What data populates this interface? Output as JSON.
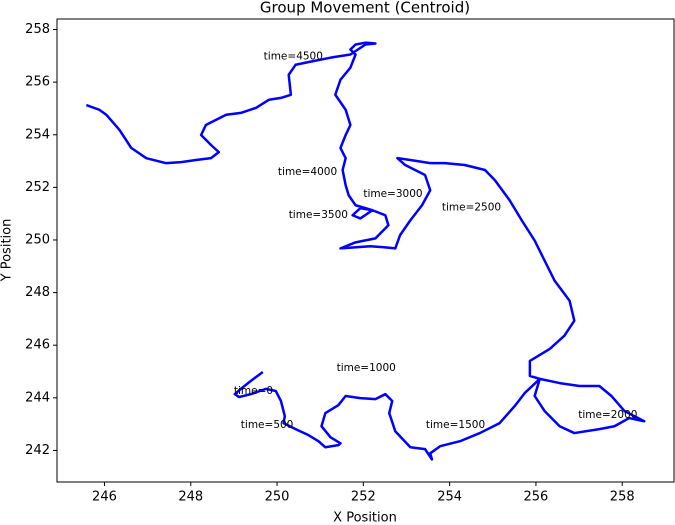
{
  "chart_data": {
    "type": "line",
    "title": "Group Movement (Centroid)",
    "x_label": "X Position",
    "y_label": "Y Position",
    "color": "#0000ff",
    "annotation_color": "#ff0000",
    "x": [
      249.67,
      249.39,
      249.16,
      249.02,
      249.12,
      249.39,
      249.74,
      249.97,
      250.09,
      250.18,
      250.15,
      250.43,
      250.73,
      250.96,
      251.12,
      251.42,
      251.47,
      251.24,
      251.03,
      251.12,
      251.42,
      251.59,
      251.93,
      252.28,
      252.51,
      252.67,
      252.6,
      252.74,
      253.09,
      253.43,
      253.59,
      253.55,
      253.78,
      254.24,
      254.7,
      255.16,
      255.51,
      255.74,
      256.09,
      256.55,
      257.01,
      257.47,
      257.75,
      258.05,
      258.51,
      258.16,
      257.82,
      257.47,
      256.89,
      256.55,
      256.2,
      255.97,
      256.09,
      255.86,
      255.86,
      256.32,
      256.66,
      256.89,
      256.78,
      256.43,
      256.2,
      255.97,
      255.67,
      255.39,
      255.05,
      254.82,
      254.35,
      253.89,
      253.55,
      253.09,
      252.79,
      252.97,
      253.43,
      253.55,
      253.36,
      253.09,
      252.85,
      252.74,
      252.51,
      252.16,
      251.47,
      251.82,
      252.28,
      252.58,
      252.51,
      252.21,
      251.93,
      251.75,
      251.93,
      252.21,
      251.82,
      251.66,
      251.59,
      251.52,
      251.59,
      251.47,
      251.59,
      251.7,
      251.59,
      251.35,
      251.47,
      251.7,
      251.82,
      251.7,
      251.82,
      252.05,
      252.28,
      252.05,
      251.7,
      251.24,
      250.78,
      250.43,
      250.27,
      250.32,
      250.09,
      249.81,
      249.51,
      249.16,
      248.82,
      248.35,
      248.24,
      248.47,
      248.65,
      248.47,
      248.12,
      247.78,
      247.43,
      246.97,
      246.62,
      246.35,
      246.05,
      245.88,
      245.58
    ],
    "values": [
      244.98,
      244.64,
      244.34,
      244.14,
      244.03,
      244.14,
      244.34,
      244.26,
      243.88,
      243.3,
      243.04,
      242.81,
      242.58,
      242.35,
      242.12,
      242.2,
      242.27,
      242.5,
      242.92,
      243.42,
      243.72,
      244.07,
      243.99,
      243.95,
      244.14,
      243.88,
      243.42,
      242.73,
      242.12,
      242.05,
      241.66,
      241.89,
      242.16,
      242.35,
      242.66,
      243.04,
      243.69,
      244.18,
      244.72,
      244.56,
      244.45,
      244.45,
      244.07,
      243.5,
      243.11,
      243.23,
      242.92,
      242.81,
      242.66,
      242.92,
      243.5,
      244.07,
      244.72,
      244.83,
      245.4,
      245.86,
      246.36,
      246.93,
      247.69,
      248.46,
      249.22,
      249.98,
      250.75,
      251.51,
      252.27,
      252.66,
      252.85,
      252.92,
      252.92,
      253.04,
      253.11,
      252.85,
      252.47,
      251.89,
      251.32,
      250.75,
      250.18,
      249.68,
      249.72,
      249.76,
      249.68,
      249.91,
      250.06,
      250.56,
      250.94,
      251.13,
      251.21,
      250.94,
      250.82,
      251.13,
      251.32,
      251.7,
      252.08,
      252.66,
      253.11,
      253.5,
      253.99,
      254.37,
      254.95,
      255.52,
      256.09,
      256.55,
      257.05,
      257.24,
      257.43,
      257.5,
      257.47,
      257.43,
      257.05,
      256.93,
      256.78,
      256.66,
      256.28,
      255.52,
      255.4,
      255.33,
      255.02,
      254.83,
      254.76,
      254.37,
      253.99,
      253.61,
      253.34,
      253.11,
      253.04,
      252.96,
      252.92,
      253.11,
      253.5,
      254.18,
      254.75,
      254.95,
      255.13
    ],
    "annotations": [
      {
        "text": "time=0",
        "x": 249.0,
        "y": 244.26
      },
      {
        "text": "time=500",
        "x": 249.16,
        "y": 242.96
      },
      {
        "text": "time=1000",
        "x": 251.38,
        "y": 245.14
      },
      {
        "text": "time=1500",
        "x": 253.45,
        "y": 242.96
      },
      {
        "text": "time=2000",
        "x": 256.98,
        "y": 243.34
      },
      {
        "text": "time=2500",
        "x": 253.82,
        "y": 251.24
      },
      {
        "text": "time=3000",
        "x": 252.0,
        "y": 251.74
      },
      {
        "text": "time=3500",
        "x": 250.27,
        "y": 250.94
      },
      {
        "text": "time=4000",
        "x": 250.02,
        "y": 252.58
      },
      {
        "text": "time=4500",
        "x": 249.69,
        "y": 256.97
      }
    ],
    "xlim": [
      244.9,
      259.2
    ],
    "ylim": [
      240.8,
      258.4
    ],
    "xticks": [
      246,
      248,
      250,
      252,
      254,
      256,
      258
    ],
    "yticks": [
      242,
      244,
      246,
      248,
      250,
      252,
      254,
      256,
      258
    ]
  }
}
